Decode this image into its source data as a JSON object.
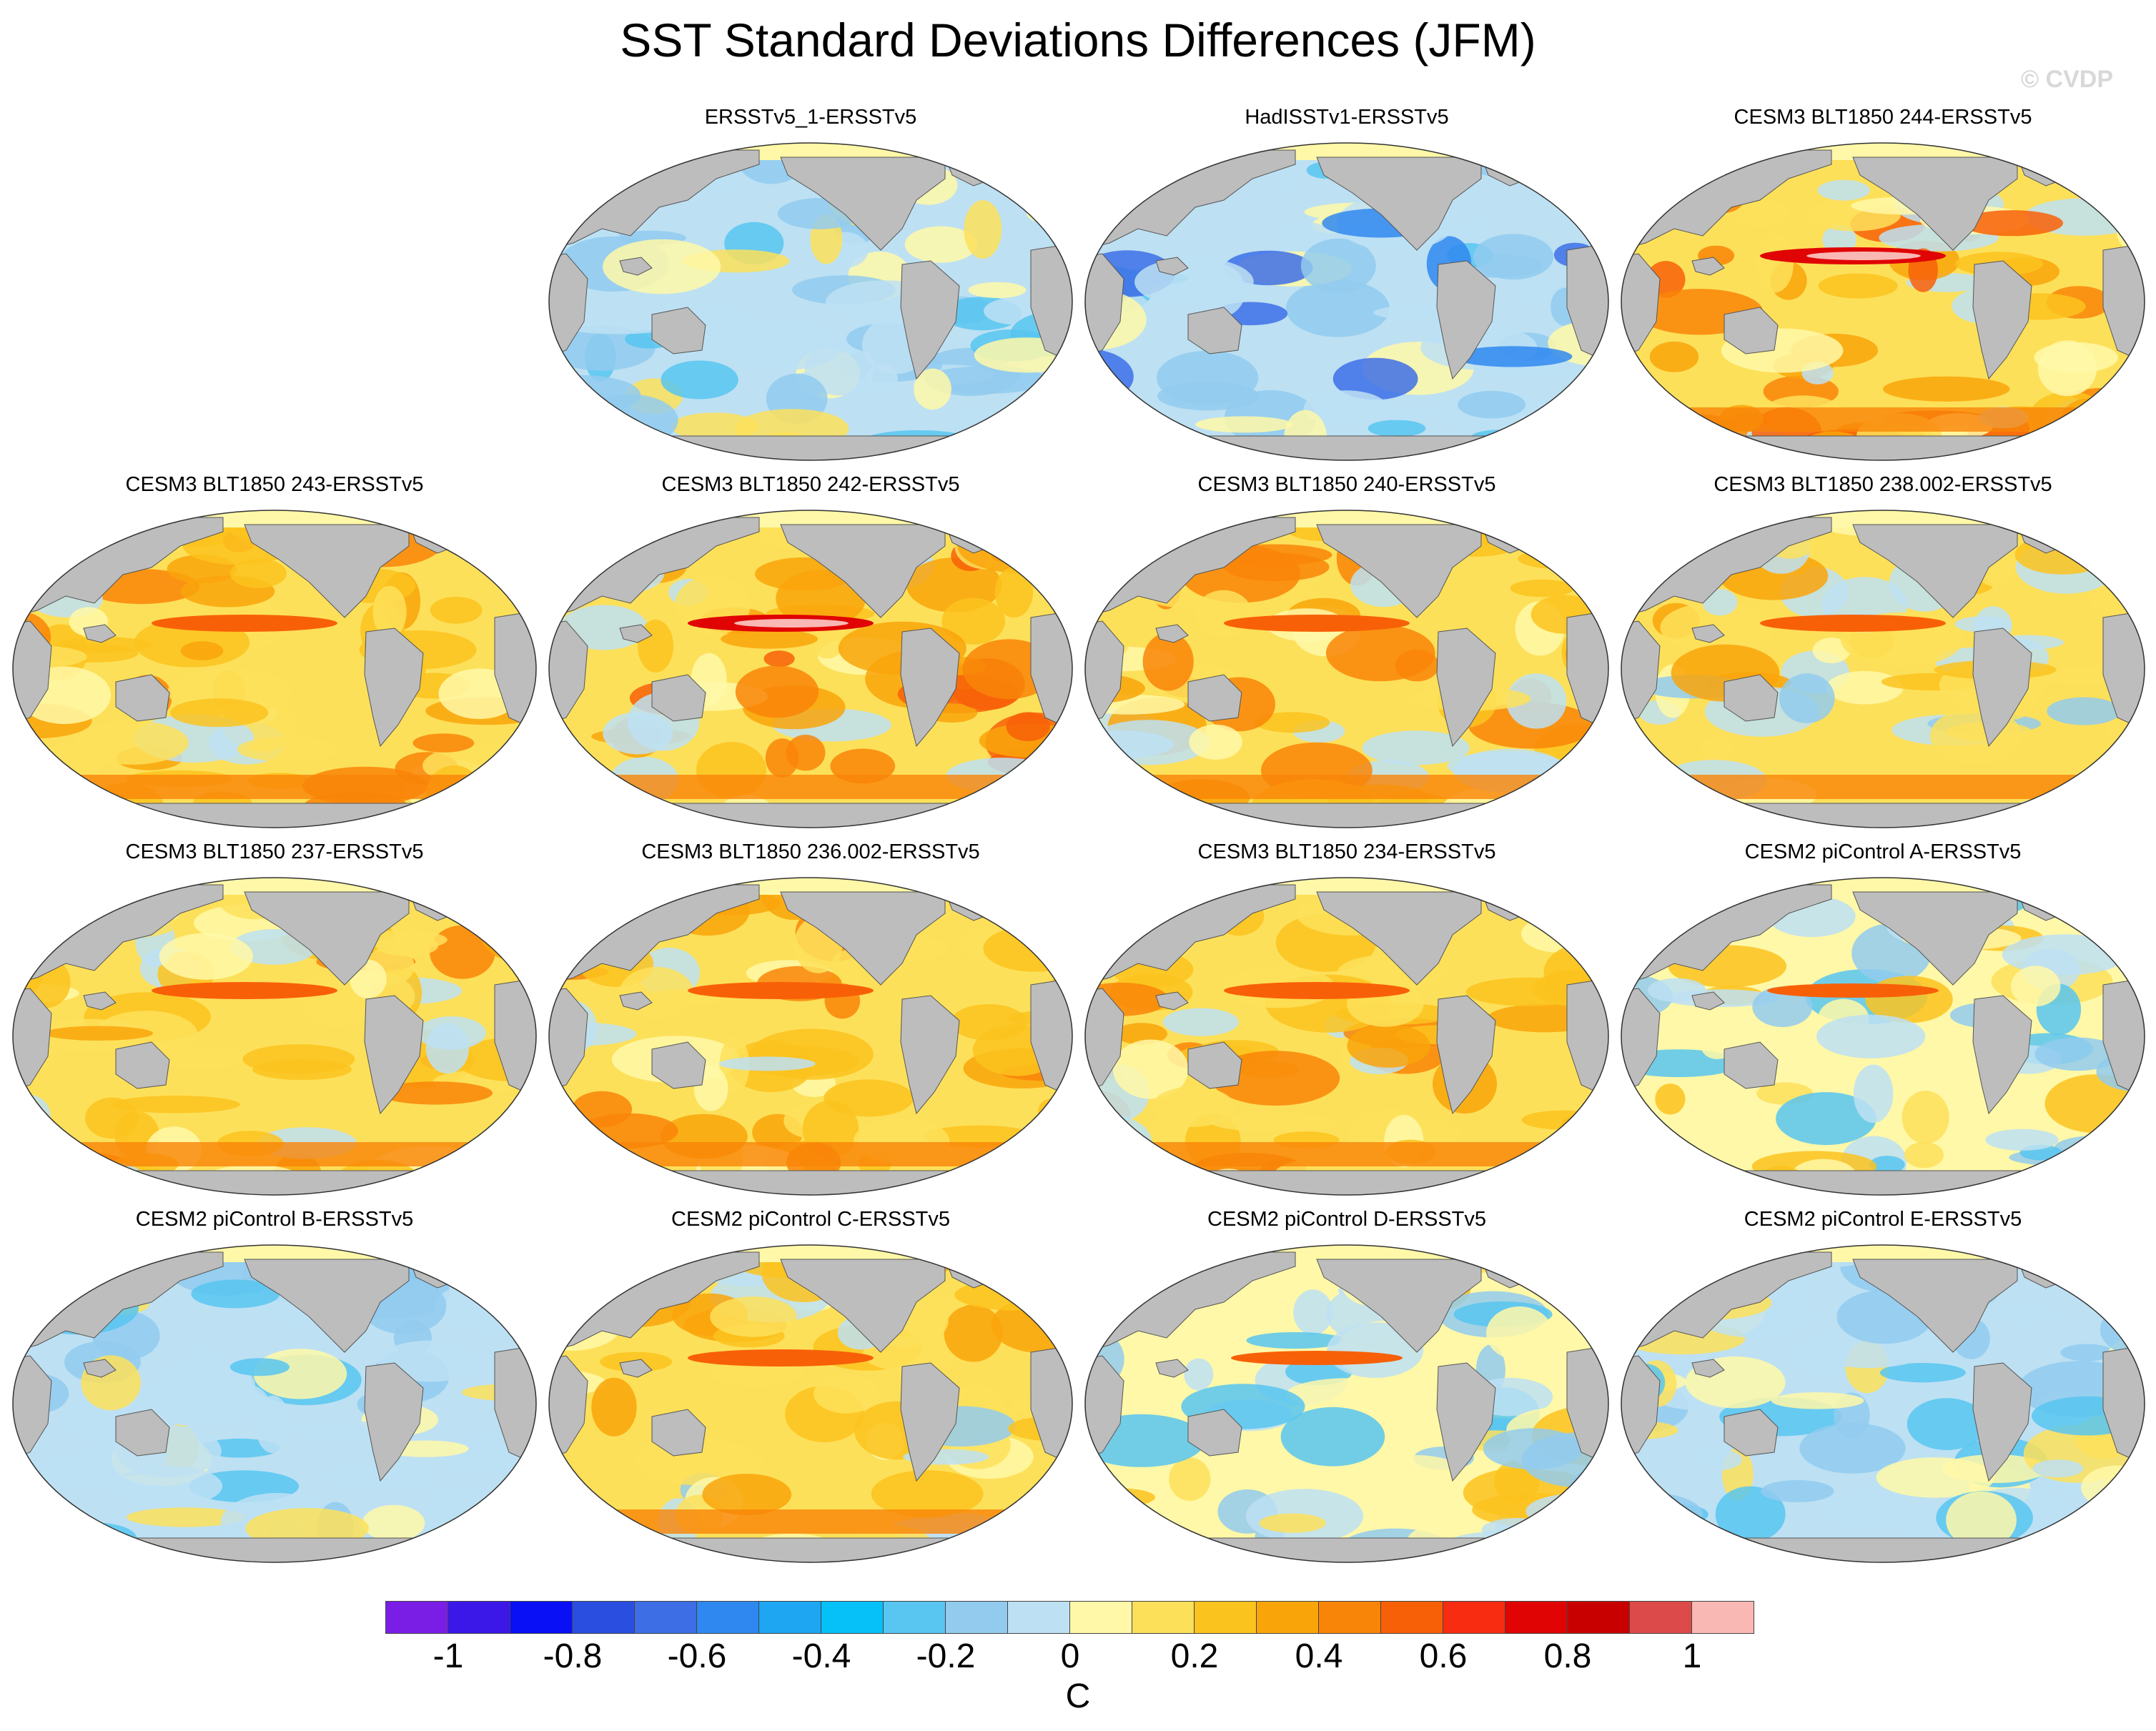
{
  "title": "SST Standard Deviations Differences (JFM)",
  "watermark": "© CVDP",
  "panels": [
    {
      "title": "ERSSTv5_1-ERSSTv5",
      "scheme": "mixed-cool"
    },
    {
      "title": "HadISSTv1-ERSSTv5",
      "scheme": "cool"
    },
    {
      "title": "CESM3 BLT1850 244-ERSSTv5",
      "scheme": "warm-strong"
    },
    {
      "title": "CESM3 BLT1850 243-ERSSTv5",
      "scheme": "warm"
    },
    {
      "title": "CESM3 BLT1850 242-ERSSTv5",
      "scheme": "warm-strong"
    },
    {
      "title": "CESM3 BLT1850 240-ERSSTv5",
      "scheme": "warm"
    },
    {
      "title": "CESM3 BLT1850 238.002-ERSSTv5",
      "scheme": "warm-mixed"
    },
    {
      "title": "CESM3 BLT1850 237-ERSSTv5",
      "scheme": "warm"
    },
    {
      "title": "CESM3 BLT1850 236.002-ERSSTv5",
      "scheme": "warm"
    },
    {
      "title": "CESM3 BLT1850 234-ERSSTv5",
      "scheme": "warm"
    },
    {
      "title": "CESM2 piControl A-ERSSTv5",
      "scheme": "mixed"
    },
    {
      "title": "CESM2 piControl B-ERSSTv5",
      "scheme": "mixed-cool"
    },
    {
      "title": "CESM2 piControl C-ERSSTv5",
      "scheme": "warm-mixed"
    },
    {
      "title": "CESM2 piControl D-ERSSTv5",
      "scheme": "mixed"
    },
    {
      "title": "CESM2 piControl E-ERSSTv5",
      "scheme": "mixed-cool"
    }
  ],
  "colorbar": {
    "units": "C",
    "colors": [
      "#7a1ee6",
      "#3b18e8",
      "#0a10f5",
      "#2a4ee0",
      "#3d6ee6",
      "#2f88f0",
      "#1ea6f2",
      "#06c0f8",
      "#58c6f0",
      "#92cbee",
      "#bde0f3",
      "#fff8a8",
      "#fde05a",
      "#fbc31e",
      "#f9a50a",
      "#f98508",
      "#f86008",
      "#f82c10",
      "#e00404",
      "#c80000",
      "#dc4a4a",
      "#f9b8b4"
    ],
    "tick_labels": [
      "-1",
      "-0.8",
      "-0.6",
      "-0.4",
      "-0.2",
      "0",
      "0.2",
      "0.4",
      "0.6",
      "0.8",
      "1"
    ]
  }
}
